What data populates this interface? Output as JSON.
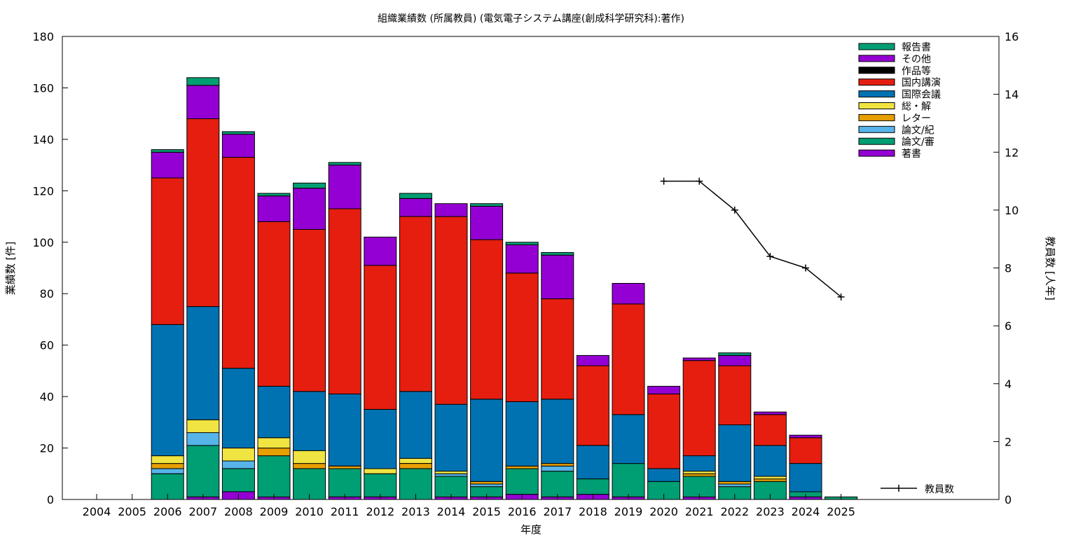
{
  "chart_data": {
    "type": "bar",
    "stacked": true,
    "title": "組織業績数 (所属教員) (電気電子システム講座(創成科学研究科):著作)",
    "xlabel": "年度",
    "ylabel": "業績数 [件]",
    "y2label": "教員数 [人年]",
    "ylim": [
      0,
      180
    ],
    "y2lim": [
      0,
      16
    ],
    "yticks": [
      0,
      20,
      40,
      60,
      80,
      100,
      120,
      140,
      160,
      180
    ],
    "y2ticks": [
      0,
      2,
      4,
      6,
      8,
      10,
      12,
      14,
      16
    ],
    "grid": false,
    "legend_position": "top-right",
    "categories": [
      "2004",
      "2005",
      "2006",
      "2007",
      "2008",
      "2009",
      "2010",
      "2011",
      "2012",
      "2013",
      "2014",
      "2015",
      "2016",
      "2017",
      "2018",
      "2019",
      "2020",
      "2021",
      "2022",
      "2023",
      "2024",
      "2025"
    ],
    "series": [
      {
        "name": "著書",
        "color": "#9400d3",
        "values": [
          0,
          0,
          0,
          1,
          3,
          1,
          0,
          1,
          1,
          0,
          1,
          1,
          2,
          1,
          2,
          1,
          0,
          1,
          0,
          0,
          1,
          0
        ]
      },
      {
        "name": "論文/審",
        "color": "#009e73",
        "values": [
          0,
          0,
          10,
          20,
          9,
          16,
          12,
          11,
          9,
          12,
          8,
          4,
          10,
          10,
          6,
          13,
          7,
          8,
          5,
          7,
          2,
          1
        ]
      },
      {
        "name": "論文/紀",
        "color": "#56b4e9",
        "values": [
          0,
          0,
          2,
          5,
          3,
          0,
          0,
          0,
          0,
          0,
          1,
          1,
          0,
          2,
          0,
          0,
          0,
          0,
          1,
          0,
          0,
          0
        ]
      },
      {
        "name": "レター",
        "color": "#e69f00",
        "values": [
          0,
          0,
          2,
          0,
          0,
          3,
          2,
          1,
          0,
          2,
          0,
          1,
          1,
          1,
          0,
          0,
          0,
          1,
          1,
          1,
          0,
          0
        ]
      },
      {
        "name": "総・解",
        "color": "#f0e442",
        "values": [
          0,
          0,
          3,
          5,
          5,
          4,
          5,
          0,
          2,
          2,
          1,
          0,
          0,
          0,
          0,
          0,
          0,
          1,
          0,
          1,
          0,
          0
        ]
      },
      {
        "name": "国際会議",
        "color": "#0072b2",
        "values": [
          0,
          0,
          51,
          44,
          31,
          20,
          23,
          28,
          23,
          26,
          26,
          32,
          25,
          25,
          13,
          19,
          5,
          6,
          22,
          12,
          11,
          0
        ]
      },
      {
        "name": "国内講演",
        "color": "#e51e10",
        "values": [
          0,
          0,
          57,
          73,
          82,
          64,
          63,
          72,
          56,
          68,
          73,
          62,
          50,
          39,
          31,
          43,
          29,
          37,
          23,
          12,
          10,
          0
        ]
      },
      {
        "name": "作品等",
        "color": "#000000",
        "values": [
          0,
          0,
          0,
          0,
          0,
          0,
          0,
          0,
          0,
          0,
          0,
          0,
          0,
          0,
          0,
          0,
          0,
          0,
          0,
          0,
          0,
          0
        ]
      },
      {
        "name": "その他",
        "color": "#9400d3",
        "values": [
          0,
          0,
          10,
          13,
          9,
          10,
          16,
          17,
          11,
          7,
          5,
          13,
          11,
          17,
          4,
          8,
          3,
          1,
          4,
          1,
          1,
          0
        ]
      },
      {
        "name": "報告書",
        "color": "#009e73",
        "values": [
          0,
          0,
          1,
          3,
          1,
          1,
          2,
          1,
          0,
          2,
          0,
          1,
          1,
          1,
          0,
          0,
          0,
          0,
          1,
          0,
          0,
          0
        ]
      }
    ],
    "line_series": {
      "name": "教員数",
      "axis": "y2",
      "color": "#000000",
      "x": [
        "2020",
        "2021",
        "2022",
        "2023",
        "2024",
        "2025"
      ],
      "values": [
        11,
        11,
        10,
        8.4,
        8,
        7
      ]
    }
  }
}
